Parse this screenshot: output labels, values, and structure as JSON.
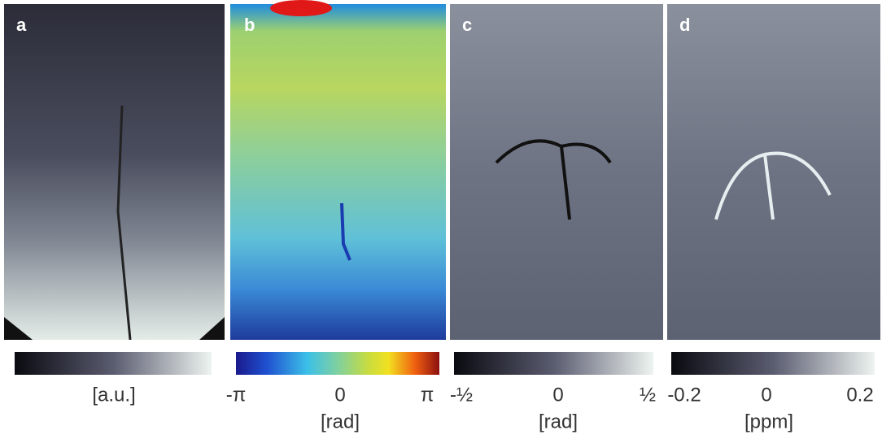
{
  "panels": [
    {
      "label": "a",
      "unit": "[a.u.]"
    },
    {
      "label": "b",
      "ticks": [
        "-π",
        "0",
        "π"
      ],
      "unit": "[rad]"
    },
    {
      "label": "c",
      "ticks": [
        "-½",
        "0",
        "½"
      ],
      "unit": "[rad]"
    },
    {
      "label": "d",
      "ticks": [
        "-0.2",
        "0",
        "0.2"
      ],
      "unit": "[ppm]"
    }
  ]
}
